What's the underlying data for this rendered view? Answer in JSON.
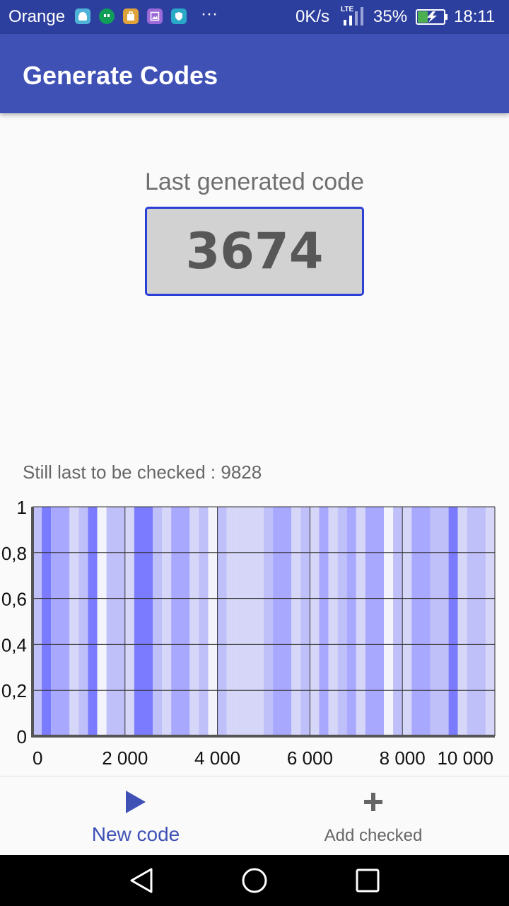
{
  "status_bar": {
    "carrier": "Orange",
    "more": "···",
    "net_speed": "0K/s",
    "net_type": "LTE",
    "battery": "35%",
    "time": "18:11",
    "icons": [
      "android-icon",
      "hangouts-icon",
      "store-icon",
      "gallery-icon",
      "shield-icon"
    ],
    "icon_colors": [
      "#4fb3d9",
      "#0f9d58",
      "#e0a33a",
      "#9c6ad9",
      "#2aa8c8"
    ]
  },
  "app_bar": {
    "title": "Generate Codes"
  },
  "main": {
    "last_code_label": "Last generated code",
    "last_code": "3674",
    "still_label": "Still last to be checked : 9828"
  },
  "chart_data": {
    "type": "bar",
    "title": "",
    "xlabel": "",
    "ylabel": "",
    "xlim": [
      0,
      10000
    ],
    "ylim": [
      0,
      1
    ],
    "x_ticks": [
      "0",
      "2 000",
      "4 000",
      "6 000",
      "8 000",
      "10 000"
    ],
    "x_tick_values": [
      0,
      2000,
      4000,
      6000,
      8000,
      10000
    ],
    "y_ticks": [
      "0",
      "0,2",
      "0,4",
      "0,6",
      "0,8",
      "1"
    ],
    "y_tick_values": [
      0,
      0.2,
      0.4,
      0.6,
      0.8,
      1
    ],
    "grid": true,
    "colors": {
      "heavy": "#7b7bff",
      "medium": "#a8a8ff",
      "light": "#bfbff9",
      "pale": "#d6d6f9",
      "empty": "#f3f3fc"
    },
    "bands": [
      {
        "x0": 0,
        "x1": 200,
        "shade": "light"
      },
      {
        "x0": 200,
        "x1": 400,
        "shade": "heavy"
      },
      {
        "x0": 400,
        "x1": 800,
        "shade": "medium"
      },
      {
        "x0": 800,
        "x1": 1000,
        "shade": "pale"
      },
      {
        "x0": 1000,
        "x1": 1200,
        "shade": "light"
      },
      {
        "x0": 1200,
        "x1": 1400,
        "shade": "heavy"
      },
      {
        "x0": 1400,
        "x1": 1600,
        "shade": "empty"
      },
      {
        "x0": 1600,
        "x1": 2000,
        "shade": "light"
      },
      {
        "x0": 2000,
        "x1": 2200,
        "shade": "pale"
      },
      {
        "x0": 2200,
        "x1": 2600,
        "shade": "heavy"
      },
      {
        "x0": 2600,
        "x1": 2800,
        "shade": "light"
      },
      {
        "x0": 2800,
        "x1": 3000,
        "shade": "pale"
      },
      {
        "x0": 3000,
        "x1": 3400,
        "shade": "medium"
      },
      {
        "x0": 3400,
        "x1": 3600,
        "shade": "pale"
      },
      {
        "x0": 3600,
        "x1": 3800,
        "shade": "light"
      },
      {
        "x0": 3800,
        "x1": 4000,
        "shade": "empty"
      },
      {
        "x0": 4000,
        "x1": 4200,
        "shade": "light"
      },
      {
        "x0": 4200,
        "x1": 4400,
        "shade": "pale"
      },
      {
        "x0": 4400,
        "x1": 5000,
        "shade": "pale"
      },
      {
        "x0": 5000,
        "x1": 5200,
        "shade": "light"
      },
      {
        "x0": 5200,
        "x1": 5600,
        "shade": "medium"
      },
      {
        "x0": 5600,
        "x1": 5800,
        "shade": "pale"
      },
      {
        "x0": 5800,
        "x1": 6000,
        "shade": "light"
      },
      {
        "x0": 6000,
        "x1": 6200,
        "shade": "pale"
      },
      {
        "x0": 6200,
        "x1": 6400,
        "shade": "medium"
      },
      {
        "x0": 6400,
        "x1": 6600,
        "shade": "pale"
      },
      {
        "x0": 6600,
        "x1": 6800,
        "shade": "light"
      },
      {
        "x0": 6800,
        "x1": 7000,
        "shade": "medium"
      },
      {
        "x0": 7000,
        "x1": 7200,
        "shade": "pale"
      },
      {
        "x0": 7200,
        "x1": 7600,
        "shade": "medium"
      },
      {
        "x0": 7600,
        "x1": 7800,
        "shade": "empty"
      },
      {
        "x0": 7800,
        "x1": 8000,
        "shade": "light"
      },
      {
        "x0": 8000,
        "x1": 8200,
        "shade": "pale"
      },
      {
        "x0": 8200,
        "x1": 8600,
        "shade": "medium"
      },
      {
        "x0": 8600,
        "x1": 9000,
        "shade": "light"
      },
      {
        "x0": 9000,
        "x1": 9200,
        "shade": "heavy"
      },
      {
        "x0": 9200,
        "x1": 9400,
        "shade": "pale"
      },
      {
        "x0": 9400,
        "x1": 9800,
        "shade": "light"
      },
      {
        "x0": 9800,
        "x1": 10000,
        "shade": "pale"
      }
    ]
  },
  "bottom_nav": {
    "items": [
      {
        "label": "New code",
        "icon": "play-icon",
        "active": true
      },
      {
        "label": "Add checked",
        "icon": "plus-icon",
        "active": false
      }
    ],
    "active_color": "#3f51b5",
    "inactive_color": "#666666"
  },
  "system_nav": {
    "buttons": [
      "back-icon",
      "home-icon",
      "recents-icon"
    ]
  }
}
